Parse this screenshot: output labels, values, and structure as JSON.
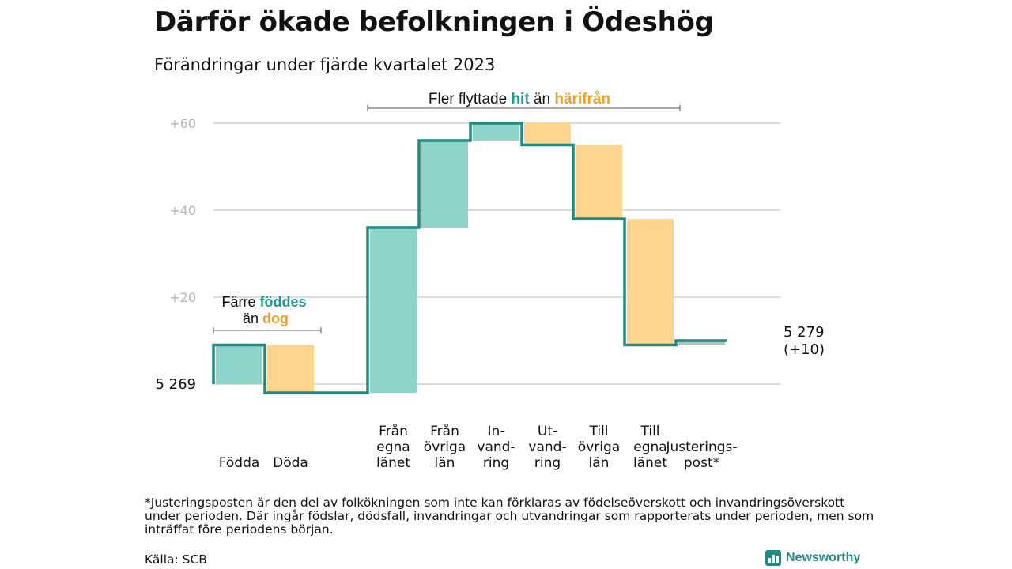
{
  "title": "Därför ökade befolkningen i Ödeshög",
  "subtitle": "Förändringar under fjärde kvartalet 2023",
  "footnote": "*Justeringsposten är den del av folkökningen som inte kan förklaras av födelseöverskott och invandringsöverskott under perioden. Där ingår födslar, dödsfall, invandringar och utvandringar som rapporterats under perioden, men som inträffat före periodens början.",
  "source": "Källa: SCB",
  "brand": "Newsworthy",
  "colors": {
    "increase": "#8dd5cb",
    "decrease": "#fcd68e",
    "line": "#1f8a80",
    "hit": "#1f9a8c",
    "harifran": "#f0a12a",
    "grid": "#dcdcdc",
    "tick": "#b5b5b5",
    "adjust": "#bdbdbd"
  },
  "chart_data": {
    "type": "waterfall",
    "start_label": "5 269",
    "end_label": [
      "5 279",
      "(+10)"
    ],
    "ylim": [
      0,
      60
    ],
    "yticks": [
      {
        "value": 20,
        "label": "+20"
      },
      {
        "value": 40,
        "label": "+40"
      },
      {
        "value": 60,
        "label": "+60"
      }
    ],
    "steps": [
      {
        "name": "Födda",
        "label": [
          "Födda"
        ],
        "delta": 9,
        "kind": "increase"
      },
      {
        "name": "Döda",
        "label": [
          "Döda"
        ],
        "delta": -11,
        "kind": "decrease"
      },
      {
        "name": "gap",
        "label": [],
        "delta": 0,
        "kind": "none"
      },
      {
        "name": "Från egna länet",
        "label": [
          "Från",
          "egna",
          "länet"
        ],
        "delta": 38,
        "kind": "increase"
      },
      {
        "name": "Från övriga län",
        "label": [
          "Från",
          "övriga",
          "län"
        ],
        "delta": 20,
        "kind": "increase"
      },
      {
        "name": "Invandring",
        "label": [
          "In-",
          "vand-",
          "ring"
        ],
        "delta": 4,
        "kind": "increase"
      },
      {
        "name": "Utvandring",
        "label": [
          "Ut-",
          "vand-",
          "ring"
        ],
        "delta": -5,
        "kind": "decrease"
      },
      {
        "name": "Till övriga län",
        "label": [
          "Till",
          "övriga",
          "län"
        ],
        "delta": -17,
        "kind": "decrease"
      },
      {
        "name": "Till egna länet",
        "label": [
          "Till",
          "egna",
          "länet"
        ],
        "delta": -29,
        "kind": "decrease"
      },
      {
        "name": "Justeringspost*",
        "label": [
          "Justerings-",
          "post*"
        ],
        "delta": 1,
        "kind": "adjust"
      }
    ],
    "annotations": {
      "born": {
        "line1": "Färre",
        "highlight1": "föddes",
        "line2": "än",
        "highlight2": "dog"
      },
      "moved": {
        "text1": "Fler flyttade",
        "highlight1": "hit",
        "text2": "än",
        "highlight2": "härifrån"
      }
    }
  }
}
